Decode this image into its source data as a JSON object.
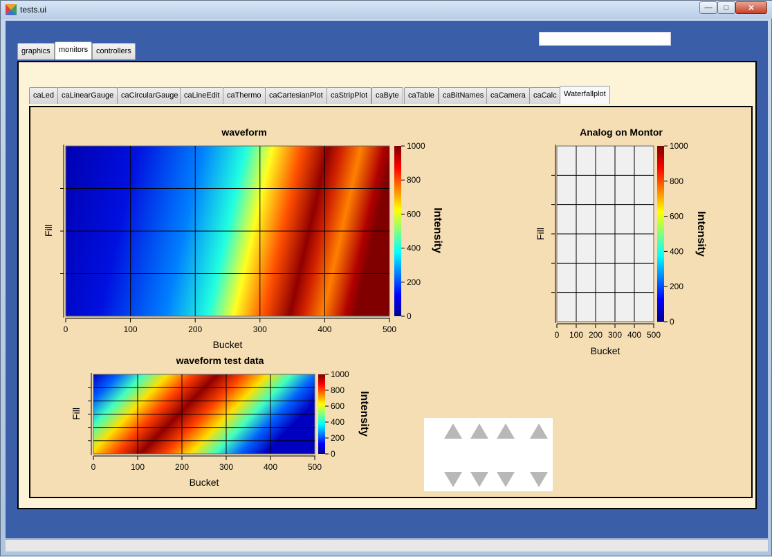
{
  "window": {
    "title": "tests.ui",
    "minimize_icon": "minimize-icon",
    "maximize_icon": "maximize-icon",
    "close_icon": "close-icon"
  },
  "top_input": {
    "value": ""
  },
  "main_tabs": [
    {
      "label": "graphics",
      "active": false
    },
    {
      "label": "monitors",
      "active": true
    },
    {
      "label": "controllers",
      "active": false
    }
  ],
  "widget_tabs": [
    {
      "label": "caLed",
      "active": false
    },
    {
      "label": "caLinearGauge",
      "active": false
    },
    {
      "label": "caCircularGauge",
      "active": false
    },
    {
      "label": "caLineEdit",
      "active": false
    },
    {
      "label": "caThermo",
      "active": false
    },
    {
      "label": "caCartesianPlot",
      "active": false
    },
    {
      "label": "caStripPlot",
      "active": false
    },
    {
      "label": "caByte",
      "active": false
    },
    {
      "label": "caTable",
      "active": false
    },
    {
      "label": "caBitNames",
      "active": false
    },
    {
      "label": "caCamera",
      "active": false
    },
    {
      "label": "caCalc",
      "active": false
    },
    {
      "label": "Waterfallplot",
      "active": true
    }
  ],
  "colors": {
    "panel_bg": "#f5deb3",
    "outer_bg": "#fdf3d7",
    "client_bg": "#3b5ea8"
  },
  "chart_data": [
    {
      "type": "heatmap",
      "title": "waveform",
      "xlabel": "Bucket",
      "ylabel": "Fill",
      "colorbar_label": "Intensity",
      "xlim": [
        0,
        500
      ],
      "x_ticks": [
        "0",
        "100",
        "200",
        "300",
        "400",
        "500"
      ],
      "color_ticks": [
        "0",
        "200",
        "400",
        "600",
        "800",
        "1000"
      ],
      "clim": [
        0,
        1000
      ],
      "grid": true
    },
    {
      "type": "heatmap",
      "title": "Analog on Montor",
      "xlabel": "Bucket",
      "ylabel": "Fill",
      "colorbar_label": "Intensity",
      "xlim": [
        0,
        500
      ],
      "x_ticks": [
        "0",
        "100",
        "200",
        "300",
        "400",
        "500"
      ],
      "color_ticks": [
        "0",
        "200",
        "400",
        "600",
        "800",
        "1000"
      ],
      "clim": [
        0,
        1000
      ],
      "grid": true,
      "empty": true
    },
    {
      "type": "heatmap",
      "title": "waveform test data",
      "xlabel": "Bucket",
      "ylabel": "Fill",
      "colorbar_label": "Intensity",
      "xlim": [
        0,
        500
      ],
      "x_ticks": [
        "0",
        "100",
        "200",
        "300",
        "400",
        "500"
      ],
      "color_ticks": [
        "0",
        "200",
        "400",
        "600",
        "800",
        "1000"
      ],
      "clim": [
        0,
        1000
      ],
      "grid": true
    }
  ],
  "arrow_controls": {
    "up_icon": "triangle-up-icon",
    "down_icon": "triangle-down-icon"
  }
}
